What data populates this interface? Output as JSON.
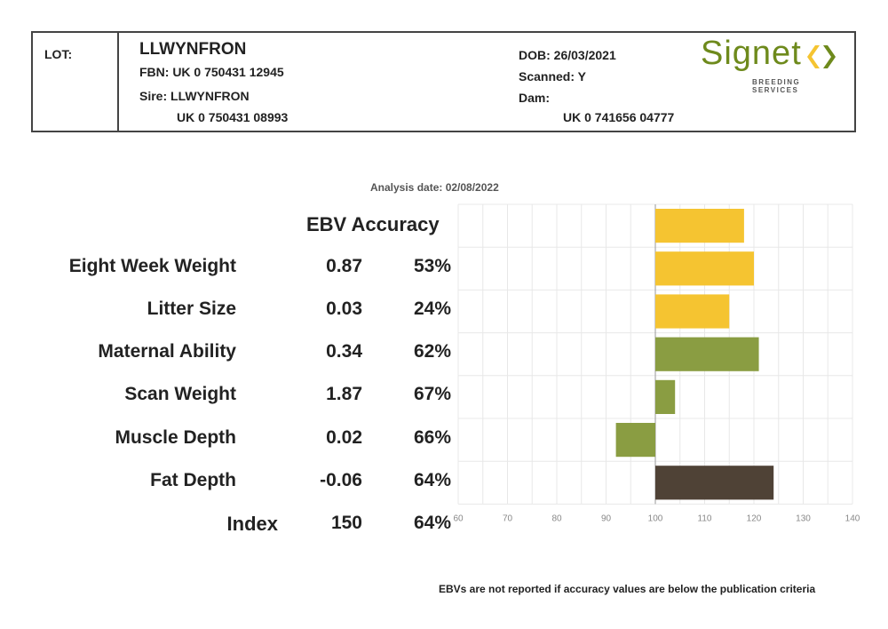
{
  "header": {
    "lot_label": "LOT:",
    "animal_name": "LLWYNFRON",
    "fbn": "FBN: UK 0 750431 12945",
    "sire": "Sire: LLWYNFRON",
    "sire_id": "UK 0 750431 08993",
    "dob": "DOB: 26/03/2021",
    "scanned": "Scanned: Y",
    "dam": "Dam:",
    "dam_id": "UK 0 741656 04777"
  },
  "logo": {
    "name": "Signet",
    "subtitle": "BREEDING SERVICES",
    "color": "#6e8a1c"
  },
  "analysis_date": "Analysis date: 02/08/2022",
  "column_header": "EBV Accuracy",
  "rows": [
    {
      "trait": "Eight Week Weight",
      "ebv": "0.87",
      "accuracy": "53%"
    },
    {
      "trait": "Litter Size",
      "ebv": "0.03",
      "accuracy": "24%"
    },
    {
      "trait": "Maternal Ability",
      "ebv": "0.34",
      "accuracy": "62%"
    },
    {
      "trait": "Scan Weight",
      "ebv": "1.87",
      "accuracy": "67%"
    },
    {
      "trait": "Muscle Depth",
      "ebv": "0.02",
      "accuracy": "66%"
    },
    {
      "trait": "Fat Depth",
      "ebv": "-0.06",
      "accuracy": "64%"
    },
    {
      "trait": "Index",
      "ebv": "150",
      "accuracy": "64%"
    }
  ],
  "footnote": "EBVs are not reported if accuracy values are below the publication criteria",
  "chart_data": {
    "type": "bar",
    "orientation": "horizontal",
    "baseline": 100,
    "xlim": [
      60,
      140
    ],
    "xticks": [
      "60",
      "70",
      "80",
      "90",
      "100",
      "110",
      "120",
      "130",
      "140"
    ],
    "categories": [
      "Eight Week Weight",
      "Litter Size",
      "Maternal Ability",
      "Scan Weight",
      "Muscle Depth",
      "Fat Depth",
      "Index"
    ],
    "values": [
      118,
      120,
      115,
      121,
      104,
      92,
      124
    ],
    "colors": [
      "#f5c431",
      "#f5c431",
      "#f5c431",
      "#8a9d42",
      "#8a9d42",
      "#8a9d42",
      "#4f4236"
    ],
    "grid": true
  }
}
